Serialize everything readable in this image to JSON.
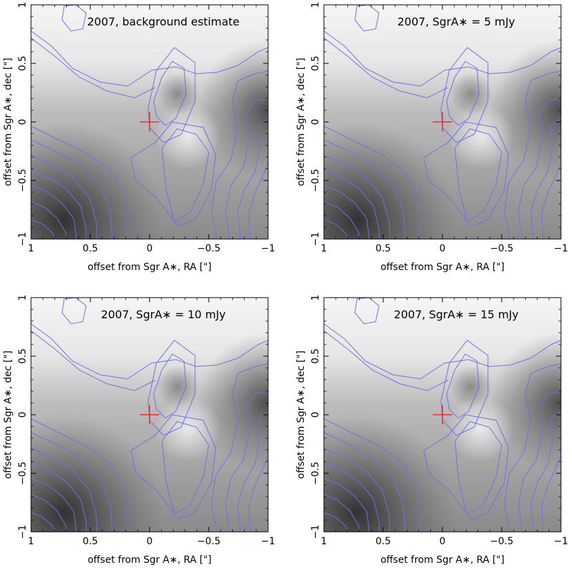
{
  "chart_data": [
    {
      "type": "heatmap",
      "title": "2007, background estimate",
      "xlabel": "offset from Sgr A∗, RA [\"]",
      "ylabel": "offset from Sgr A∗, dec [\"]",
      "xlim": [
        1,
        -1
      ],
      "ylim": [
        -1,
        1
      ],
      "x_ticks": [
        "1",
        "0.5",
        "0",
        "−0.5",
        "−1"
      ],
      "y_ticks": [
        "−1",
        "−0.5",
        "0",
        "0.5",
        "1"
      ],
      "marker": {
        "x": 0,
        "y": 0,
        "symbol": "+",
        "color": "#e53030"
      },
      "source_flux_mJy": 0
    },
    {
      "type": "heatmap",
      "title": "2007, SgrA∗ = 5 mJy",
      "xlabel": "offset from Sgr A∗, RA [\"]",
      "ylabel": "offset from Sgr A∗, dec [\"]",
      "xlim": [
        1,
        -1
      ],
      "ylim": [
        -1,
        1
      ],
      "x_ticks": [
        "1",
        "0.5",
        "0",
        "−0.5",
        "−1"
      ],
      "y_ticks": [
        "−1",
        "−0.5",
        "0",
        "0.5",
        "1"
      ],
      "marker": {
        "x": 0,
        "y": 0,
        "symbol": "+",
        "color": "#e53030"
      },
      "source_flux_mJy": 5
    },
    {
      "type": "heatmap",
      "title": "2007, SgrA∗ = 10 mJy",
      "xlabel": "offset from Sgr A∗, RA [\"]",
      "ylabel": "offset from Sgr A∗, dec [\"]",
      "xlim": [
        1,
        -1
      ],
      "ylim": [
        -1,
        1
      ],
      "x_ticks": [
        "1",
        "0.5",
        "0",
        "−0.5",
        "−1"
      ],
      "y_ticks": [
        "−1",
        "−0.5",
        "0",
        "0.5",
        "1"
      ],
      "marker": {
        "x": 0,
        "y": 0,
        "symbol": "+",
        "color": "#e53030"
      },
      "source_flux_mJy": 10
    },
    {
      "type": "heatmap",
      "title": "2007, SgrA∗ = 15 mJy",
      "xlabel": "offset from Sgr A∗, RA [\"]",
      "ylabel": "offset from Sgr A∗, dec [\"]",
      "xlim": [
        1,
        -1
      ],
      "ylim": [
        -1,
        1
      ],
      "x_ticks": [
        "1",
        "0.5",
        "0",
        "−0.5",
        "−1"
      ],
      "y_ticks": [
        "−1",
        "−0.5",
        "0",
        "0.5",
        "1"
      ],
      "marker": {
        "x": 0,
        "y": 0,
        "symbol": "+",
        "color": "#e53030"
      },
      "source_flux_mJy": 15
    }
  ],
  "colors": {
    "contour": "#6f6fe6",
    "marker": "#e53030",
    "axis": "#000000"
  }
}
